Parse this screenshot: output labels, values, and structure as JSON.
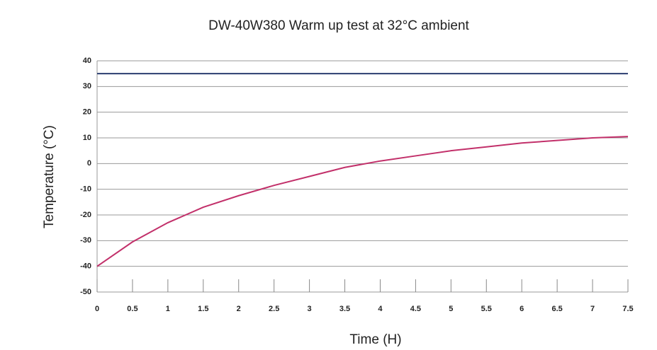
{
  "chart_data": {
    "type": "line",
    "title": "DW-40W380 Warm up test at 32°C ambient",
    "x_label": "Time (H)",
    "y_label": "Temperature (°C)",
    "x": [
      0,
      0.5,
      1,
      1.5,
      2,
      2.5,
      3,
      3.5,
      4,
      4.5,
      5,
      5.5,
      6,
      6.5,
      7,
      7.5
    ],
    "series": [
      {
        "color": "#c2306a",
        "values": [
          -40,
          -30.5,
          -23,
          -17,
          -12.5,
          -8.5,
          -5,
          -1.5,
          1,
          3,
          5,
          6.5,
          8,
          9,
          10,
          10.5
        ]
      },
      {
        "color": "#2c3e70",
        "values": [
          35,
          35,
          35,
          35,
          35,
          35,
          35,
          35,
          35,
          35,
          35,
          35,
          35,
          35,
          35,
          35
        ]
      }
    ],
    "xlim": [
      0,
      7.5
    ],
    "xticks": [
      0,
      0.5,
      1,
      1.5,
      2,
      2.5,
      3,
      3.5,
      4,
      4.5,
      5,
      5.5,
      6,
      6.5,
      7,
      7.5
    ],
    "ylim": [
      -50,
      40
    ],
    "yticks": [
      40,
      30,
      20,
      10,
      0,
      -10,
      -20,
      -30,
      -40,
      -50
    ],
    "grid": true
  }
}
